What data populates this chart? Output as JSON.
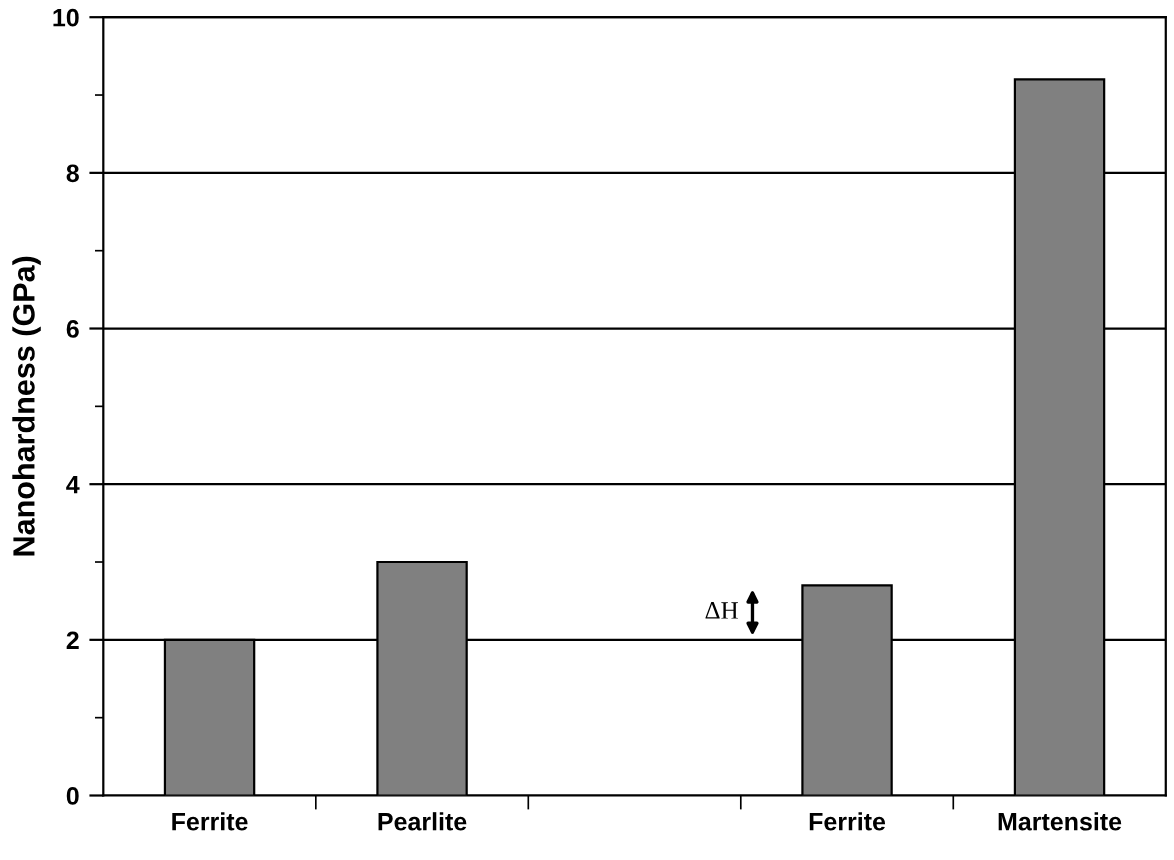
{
  "chart_data": {
    "type": "bar",
    "ylabel": "Nanohardness (GPa)",
    "categories": [
      "Ferrite",
      "Pearlite",
      null,
      "Ferrite",
      "Martensite"
    ],
    "values": [
      2.0,
      3.0,
      null,
      2.7,
      9.2
    ],
    "color": "#808080",
    "ylim": [
      0,
      10
    ],
    "yticks": [
      0,
      2,
      4,
      6,
      8,
      10
    ],
    "grid": "y",
    "annotations": [
      "ΔH"
    ]
  }
}
